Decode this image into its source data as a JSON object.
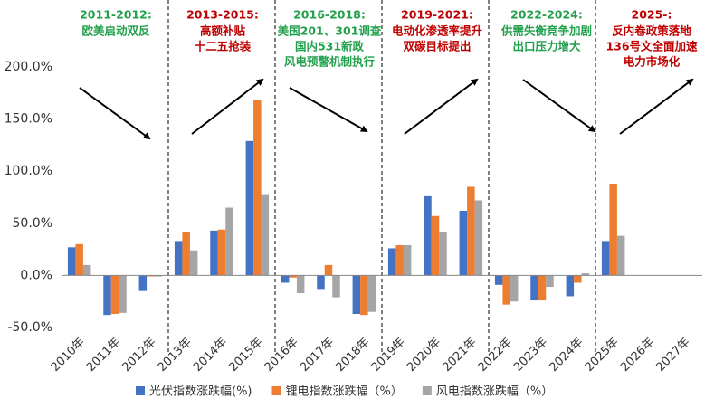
{
  "chart_data": {
    "type": "bar",
    "categories": [
      "2010年",
      "2011年",
      "2012年",
      "2013年",
      "2014年",
      "2015年",
      "2016年",
      "2017年",
      "2018年",
      "2019年",
      "2020年",
      "2021年",
      "2022年",
      "2023年",
      "2024年",
      "2025年",
      "2026年",
      "2027年"
    ],
    "series": [
      {
        "name": "光伏指数涨跌幅(%)",
        "color": "#4472c4",
        "values": [
          27,
          -38,
          -15,
          33,
          43,
          129,
          -7,
          -13,
          -37,
          26,
          76,
          62,
          -9,
          -24,
          -20,
          33,
          null,
          null
        ]
      },
      {
        "name": "锂电指数涨跌幅（%）",
        "color": "#ed7d31",
        "values": [
          30,
          -37,
          -1,
          42,
          44,
          168,
          -2,
          10,
          -38,
          29,
          57,
          85,
          -28,
          -24,
          -7,
          88,
          null,
          null
        ]
      },
      {
        "name": "风电指数涨跌幅（%）",
        "color": "#a5a5a5",
        "values": [
          10,
          -36,
          -1,
          24,
          65,
          78,
          -17,
          -21,
          -35,
          29,
          42,
          72,
          -25,
          -11,
          2,
          38,
          null,
          null
        ]
      }
    ],
    "ylim": [
      -50,
      200
    ],
    "yticks": [
      {
        "value": -50,
        "label": "-50.0%"
      },
      {
        "value": 0,
        "label": "0.0%"
      },
      {
        "value": 50,
        "label": "50.0%"
      },
      {
        "value": 100,
        "label": "100.0%"
      },
      {
        "value": 150,
        "label": "150.0%"
      },
      {
        "value": 200,
        "label": "200.0%"
      }
    ],
    "grid": false,
    "legend": "bottom",
    "annotations": [
      {
        "title": "2011-2012:",
        "lines": [
          "欧美启动双反"
        ],
        "color": "#22a04b"
      },
      {
        "title": "2013-2015:",
        "lines": [
          "高额补贴",
          "十二五抢装"
        ],
        "color": "#c00000"
      },
      {
        "title": "2016-2018:",
        "lines": [
          "美国201、301调查",
          "国内531新政",
          "风电预警机制执行"
        ],
        "color": "#22a04b"
      },
      {
        "title": "2019-2021:",
        "lines": [
          "电动化渗透率提升",
          "双碳目标提出"
        ],
        "color": "#c00000"
      },
      {
        "title": "2022-2024:",
        "lines": [
          "供需失衡竞争加剧",
          "出口压力增大"
        ],
        "color": "#22a04b"
      },
      {
        "title": "2025-:",
        "lines": [
          "反内卷政策落地",
          "136号文全面加速",
          "电力市场化"
        ],
        "color": "#c00000"
      }
    ]
  }
}
